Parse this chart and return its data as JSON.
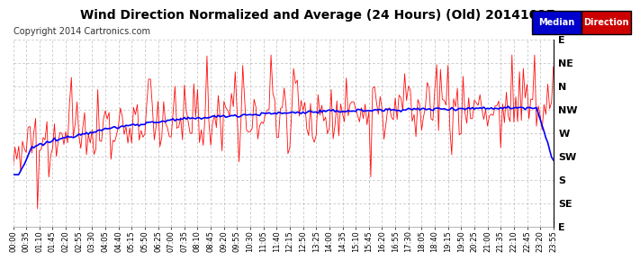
{
  "title": "Wind Direction Normalized and Average (24 Hours) (Old) 20141017",
  "copyright": "Copyright 2014 Cartronics.com",
  "background_color": "#ffffff",
  "plot_bg_color": "#ffffff",
  "grid_color": "#aaaaaa",
  "y_labels": [
    "E",
    "NE",
    "N",
    "NW",
    "W",
    "SW",
    "S",
    "SE",
    "E"
  ],
  "y_ticks": [
    360,
    315,
    270,
    225,
    180,
    135,
    90,
    45,
    0
  ],
  "legend_median_bg": "#0000cc",
  "legend_direction_bg": "#cc0000",
  "legend_median_text": "Median",
  "legend_direction_text": "Direction",
  "red_color": "#ff0000",
  "blue_color": "#0000ff",
  "title_fontsize": 10,
  "copyright_fontsize": 7,
  "label_fontsize": 8,
  "tick_fontsize": 6,
  "tick_interval": 7
}
